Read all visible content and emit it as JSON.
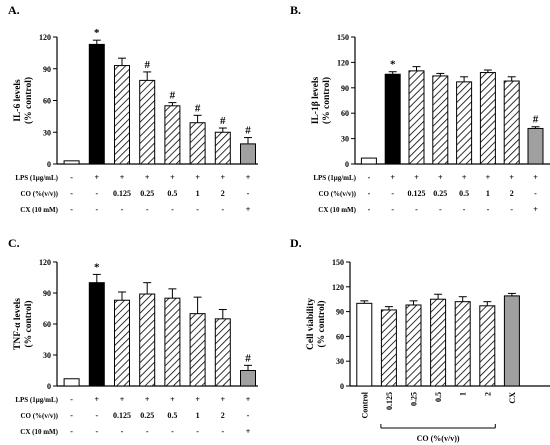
{
  "colors": {
    "lps": "#000000",
    "cx": "#a0a0a0",
    "control": "#ffffff",
    "co": "hatched"
  },
  "treatment_table": {
    "row_labels": [
      "LPS (1μg/mL)",
      "CO (%(v/v))",
      "CX (10 mM)"
    ],
    "lps": [
      "-",
      "+",
      "+",
      "+",
      "+",
      "+",
      "+",
      "+"
    ],
    "co": [
      "-",
      "-",
      "0.125",
      "0.25",
      "0.5",
      "1",
      "2",
      "-"
    ],
    "cx": [
      "-",
      "-",
      "-",
      "-",
      "-",
      "-",
      "-",
      "+"
    ]
  },
  "chart_data": [
    {
      "type": "bar",
      "panel_label": "A.",
      "ylabel_lines": [
        "IL-6 levels",
        "(% control)"
      ],
      "ylim": [
        0,
        120
      ],
      "yticks": [
        0,
        30,
        60,
        90,
        120
      ],
      "values": [
        3,
        113,
        93,
        79,
        55,
        39,
        30,
        19
      ],
      "errors": [
        0,
        4,
        7,
        8,
        3,
        7,
        4,
        6
      ],
      "styles": [
        "control",
        "lps",
        "co",
        "co",
        "co",
        "co",
        "co",
        "cx"
      ],
      "annotations": [
        "",
        "*",
        "",
        "#",
        "#",
        "#",
        "#",
        "#"
      ]
    },
    {
      "type": "bar",
      "panel_label": "B.",
      "ylabel_lines": [
        "IL-1β levels",
        "(% control)"
      ],
      "ylim": [
        0,
        150
      ],
      "yticks": [
        0,
        30,
        60,
        90,
        120,
        150
      ],
      "values": [
        7,
        106,
        110,
        104,
        97,
        108,
        98,
        42
      ],
      "errors": [
        0,
        3,
        5,
        3,
        6,
        3,
        5,
        2
      ],
      "styles": [
        "control",
        "lps",
        "co",
        "co",
        "co",
        "co",
        "co",
        "cx"
      ],
      "annotations": [
        "",
        "*",
        "",
        "",
        "",
        "",
        "",
        "#"
      ]
    },
    {
      "type": "bar",
      "panel_label": "C.",
      "ylabel_lines": [
        "TNF-α levels",
        "(% control)"
      ],
      "ylim": [
        0,
        120
      ],
      "yticks": [
        0,
        30,
        60,
        90,
        120
      ],
      "values": [
        7,
        100,
        83,
        89,
        85,
        70,
        65,
        15
      ],
      "errors": [
        0,
        8,
        8,
        11,
        9,
        16,
        9,
        5
      ],
      "styles": [
        "control",
        "lps",
        "co",
        "co",
        "co",
        "co",
        "co",
        "cx"
      ],
      "annotations": [
        "",
        "*",
        "",
        "",
        "",
        "",
        "",
        "#"
      ]
    },
    {
      "type": "bar",
      "panel_label": "D.",
      "ylabel_lines": [
        "Cell viability",
        "(% control)"
      ],
      "ylim": [
        0,
        150
      ],
      "yticks": [
        0,
        30,
        60,
        90,
        120,
        150
      ],
      "categories": [
        "Control",
        "0.125",
        "0.25",
        "0.5",
        "1",
        "2",
        "CX"
      ],
      "values": [
        100,
        92,
        98,
        105,
        102,
        97,
        109
      ],
      "errors": [
        3,
        4,
        5,
        6,
        6,
        5,
        3
      ],
      "styles": [
        "control",
        "co",
        "co",
        "co",
        "co",
        "co",
        "cx"
      ],
      "annotations": [
        "",
        "",
        "",
        "",
        "",
        "",
        ""
      ],
      "group_label": "CO (%(v/v))"
    }
  ]
}
